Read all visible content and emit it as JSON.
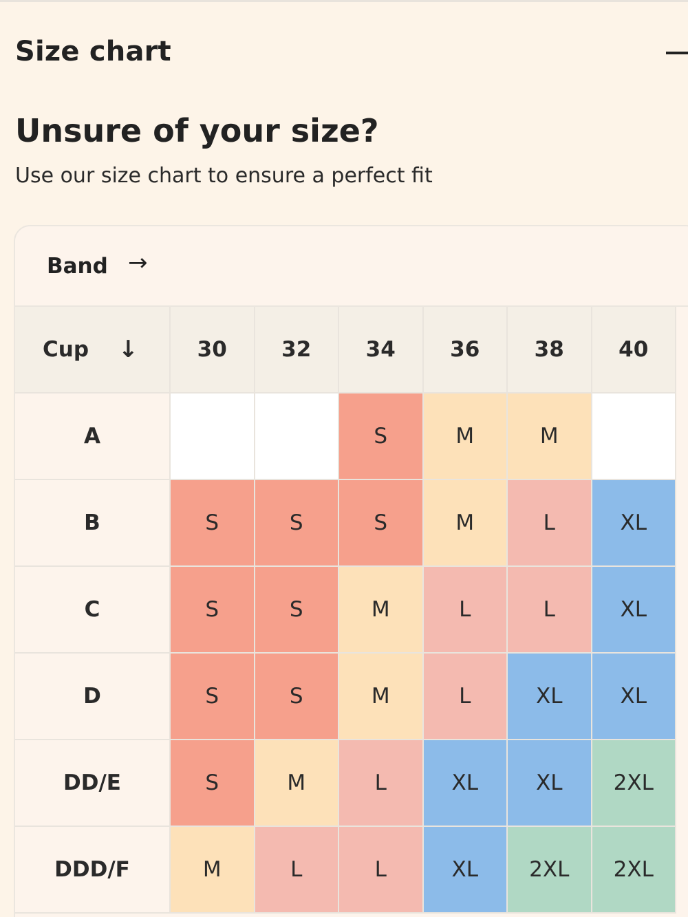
{
  "accordion": {
    "title": "Size chart",
    "collapse_icon": "minus-icon"
  },
  "headline": "Unsure of your size?",
  "subhead": "Use our size chart to ensure a perfect fit",
  "chart": {
    "band_label": "Band",
    "band_arrow": "→",
    "cup_label": "Cup",
    "cup_arrow": "↓",
    "bands": [
      "30",
      "32",
      "34",
      "36",
      "38",
      "40"
    ],
    "rows": [
      {
        "cup": "A",
        "sizes": [
          "",
          "",
          "S",
          "M",
          "M",
          ""
        ]
      },
      {
        "cup": "B",
        "sizes": [
          "S",
          "S",
          "S",
          "M",
          "L",
          "XL"
        ]
      },
      {
        "cup": "C",
        "sizes": [
          "S",
          "S",
          "M",
          "L",
          "L",
          "XL"
        ]
      },
      {
        "cup": "D",
        "sizes": [
          "S",
          "S",
          "M",
          "L",
          "XL",
          "XL"
        ]
      },
      {
        "cup": "DD/E",
        "sizes": [
          "S",
          "M",
          "L",
          "XL",
          "XL",
          "2XL"
        ]
      },
      {
        "cup": "DDD/F",
        "sizes": [
          "M",
          "L",
          "L",
          "XL",
          "2XL",
          "2XL"
        ]
      }
    ],
    "size_colors": {
      "S": "#f6a08c",
      "M": "#fde1b9",
      "L": "#f4bab0",
      "XL": "#8cbbe9",
      "2XL": "#b0d8c4",
      "": "#ffffff"
    }
  }
}
